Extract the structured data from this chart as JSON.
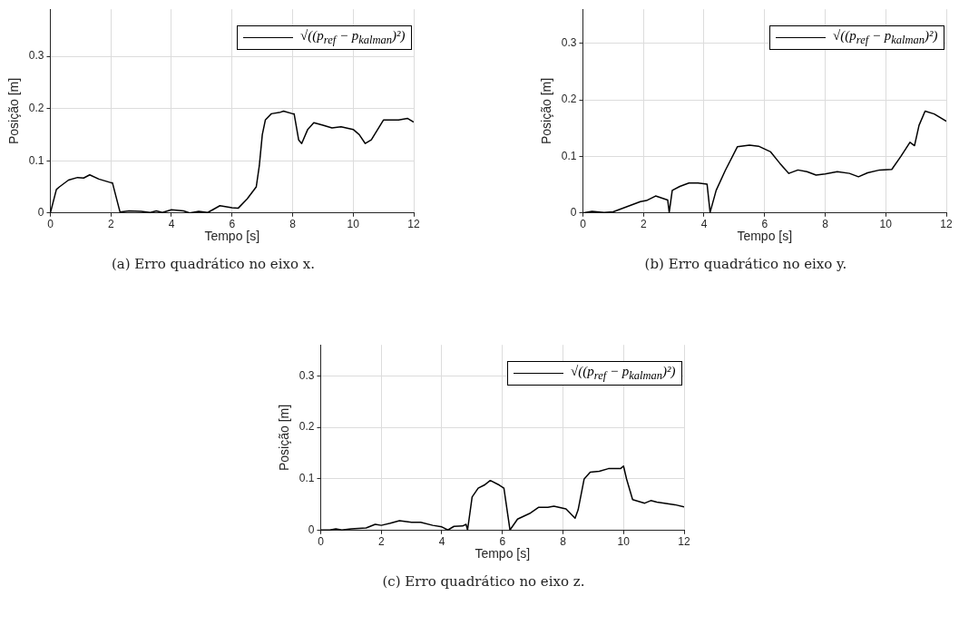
{
  "chart_data": [
    {
      "type": "line",
      "xlabel": "Tempo [s]",
      "ylabel": "Posição [m]",
      "xlim": [
        0,
        12
      ],
      "xticks": [
        0,
        2,
        4,
        6,
        8,
        10,
        12
      ],
      "ylim": [
        0,
        0.39
      ],
      "yticks": [
        0,
        0.1,
        0.2,
        0.3
      ],
      "grid": true,
      "legend": "top right",
      "marker": "none",
      "line_style": "solid",
      "annotations": [
        "(a) Erro quadrático no eixo x."
      ],
      "series": [
        {
          "name": "√((p$_{ref}$ − p$_{kalman}$)²)",
          "color": "#000000",
          "x": [
            0,
            0.2,
            0.3,
            0.6,
            0.9,
            1.1,
            1.3,
            1.6,
            2.0,
            2.05,
            2.3,
            2.6,
            3.0,
            3.3,
            3.5,
            3.7,
            4.0,
            4.4,
            4.6,
            4.9,
            5.2,
            5.6,
            6.0,
            6.2,
            6.5,
            6.8,
            6.9,
            7.0,
            7.1,
            7.3,
            7.6,
            7.7,
            8.0,
            8.05,
            8.2,
            8.3,
            8.5,
            8.7,
            9.0,
            9.3,
            9.6,
            10.0,
            10.2,
            10.4,
            10.6,
            11.0,
            11.5,
            11.8,
            12
          ],
          "values": [
            0,
            0.045,
            0.05,
            0.063,
            0.068,
            0.067,
            0.073,
            0.065,
            0.058,
            0.058,
            0.002,
            0.004,
            0.003,
            0.001,
            0.004,
            0.001,
            0.006,
            0.004,
            0,
            0.003,
            0.001,
            0.014,
            0.01,
            0.009,
            0.027,
            0.05,
            0.09,
            0.15,
            0.178,
            0.19,
            0.193,
            0.195,
            0.19,
            0.19,
            0.14,
            0.133,
            0.16,
            0.173,
            0.168,
            0.163,
            0.165,
            0.16,
            0.15,
            0.133,
            0.14,
            0.178,
            0.178,
            0.181,
            0.174
          ]
        }
      ]
    },
    {
      "type": "line",
      "xlabel": "Tempo [s]",
      "ylabel": "Posição [m]",
      "xlim": [
        0,
        12
      ],
      "xticks": [
        0,
        2,
        4,
        6,
        8,
        10,
        12
      ],
      "ylim": [
        0,
        0.36
      ],
      "yticks": [
        0,
        0.1,
        0.2,
        0.3
      ],
      "grid": true,
      "legend": "top right",
      "marker": "none",
      "line_style": "solid",
      "annotations": [
        "(b) Erro quadrático no eixo y."
      ],
      "series": [
        {
          "name": "√((p$_{ref}$ − p$_{kalman}$)²)",
          "color": "#000000",
          "x": [
            0,
            0.3,
            0.7,
            1.0,
            1.5,
            1.9,
            2.1,
            2.4,
            2.8,
            2.85,
            2.95,
            3.2,
            3.5,
            3.8,
            4.1,
            4.2,
            4.4,
            4.7,
            5.1,
            5.5,
            5.8,
            6.2,
            6.5,
            6.8,
            7.1,
            7.4,
            7.7,
            8.0,
            8.4,
            8.8,
            9.1,
            9.4,
            9.8,
            10.2,
            10.5,
            10.8,
            10.95,
            11.1,
            11.3,
            11.6,
            12
          ],
          "values": [
            0,
            0.003,
            0.001,
            0.002,
            0.012,
            0.02,
            0.022,
            0.03,
            0.023,
            0.001,
            0.04,
            0.047,
            0.053,
            0.053,
            0.051,
            0.001,
            0.04,
            0.075,
            0.117,
            0.12,
            0.118,
            0.108,
            0.088,
            0.07,
            0.076,
            0.073,
            0.067,
            0.069,
            0.073,
            0.07,
            0.064,
            0.071,
            0.076,
            0.077,
            0.1,
            0.125,
            0.119,
            0.155,
            0.18,
            0.175,
            0.162
          ]
        }
      ]
    },
    {
      "type": "line",
      "xlabel": "Tempo [s]",
      "ylabel": "Posição [m]",
      "xlim": [
        0,
        12
      ],
      "xticks": [
        0,
        2,
        4,
        6,
        8,
        10,
        12
      ],
      "ylim": [
        0,
        0.36
      ],
      "yticks": [
        0,
        0.1,
        0.2,
        0.3
      ],
      "grid": true,
      "legend": "top right",
      "marker": "none",
      "line_style": "solid",
      "annotations": [
        "(c) Erro quadrático no eixo z."
      ],
      "series": [
        {
          "name": "√((p$_{ref}$ − p$_{kalman}$)²)",
          "color": "#000000",
          "x": [
            0,
            0.3,
            0.5,
            0.7,
            1.0,
            1.5,
            1.8,
            2.0,
            2.3,
            2.6,
            3.0,
            3.3,
            3.7,
            4.0,
            4.2,
            4.4,
            4.7,
            4.8,
            4.85,
            5.0,
            5.2,
            5.4,
            5.6,
            5.9,
            6.05,
            6.25,
            6.5,
            6.9,
            7.2,
            7.5,
            7.7,
            8.1,
            8.4,
            8.5,
            8.7,
            8.9,
            9.2,
            9.5,
            9.9,
            10.0,
            10.1,
            10.3,
            10.7,
            10.9,
            11.1,
            11.7,
            12
          ],
          "values": [
            0.001,
            0.001,
            0.003,
            0.001,
            0.003,
            0.005,
            0.012,
            0.01,
            0.014,
            0.019,
            0.016,
            0.016,
            0.01,
            0.007,
            0.001,
            0.008,
            0.009,
            0.012,
            0.001,
            0.065,
            0.082,
            0.088,
            0.097,
            0.088,
            0.082,
            0.001,
            0.022,
            0.033,
            0.045,
            0.045,
            0.047,
            0.042,
            0.024,
            0.04,
            0.1,
            0.113,
            0.115,
            0.12,
            0.12,
            0.125,
            0.1,
            0.06,
            0.053,
            0.058,
            0.055,
            0.05,
            0.046
          ]
        }
      ]
    }
  ]
}
